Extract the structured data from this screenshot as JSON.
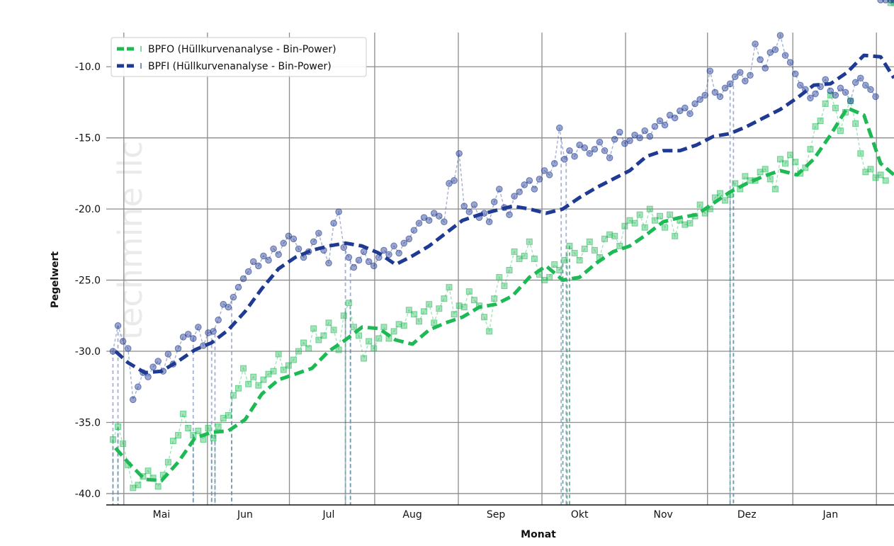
{
  "chart_data": {
    "type": "line",
    "title": "",
    "xlabel": "Monat",
    "ylabel": "Pegelwert",
    "watermark": "techmine llc",
    "ylim": [
      -40.8,
      -7.6
    ],
    "yticks": [
      -40.0,
      -35.0,
      -30.0,
      -25.0,
      -20.0,
      -15.0,
      -10.0
    ],
    "ytick_labels": [
      "-40.0",
      "-35.0",
      "-30.0",
      "-25.0",
      "-20.0",
      "-15.0",
      "-10.0"
    ],
    "xlim": [
      -0.66,
      8.76
    ],
    "categories": [
      "Mai",
      "Jun",
      "Jul",
      "Aug",
      "Sep",
      "Okt",
      "Nov",
      "Dez",
      "Jan"
    ],
    "month_boundaries": [
      -0.45,
      0.55,
      1.53,
      2.55,
      3.55,
      4.55,
      5.55,
      6.53,
      7.55,
      8.55
    ],
    "grid": true,
    "legend_position": "top-left",
    "series": [
      {
        "name": "BPFO (Hüllkurvenanalyse - Bin-Power)",
        "color": "#1db954",
        "marker": "square",
        "trend_x": [
          -0.55,
          -0.4,
          -0.2,
          0.0,
          0.2,
          0.4,
          0.6,
          0.8,
          1.0,
          1.2,
          1.4,
          1.6,
          1.8,
          2.0,
          2.2,
          2.4,
          2.6,
          2.8,
          3.0,
          3.2,
          3.4,
          3.6,
          3.8,
          4.0,
          4.2,
          4.4,
          4.6,
          4.8,
          5.0,
          5.2,
          5.4,
          5.6,
          5.8,
          6.0,
          6.2,
          6.4,
          6.6,
          6.8,
          7.0,
          7.2,
          7.4,
          7.6,
          7.8,
          8.0,
          8.2,
          8.4,
          8.6,
          8.76
        ],
        "trend_y": [
          -36.8,
          -37.8,
          -39.0,
          -39.1,
          -37.8,
          -36.1,
          -35.7,
          -35.6,
          -34.8,
          -33.0,
          -32.0,
          -31.6,
          -31.2,
          -30.0,
          -29.2,
          -28.3,
          -28.4,
          -29.2,
          -29.5,
          -28.5,
          -28.0,
          -27.6,
          -26.9,
          -26.7,
          -26.1,
          -24.8,
          -24.0,
          -25.0,
          -24.8,
          -23.8,
          -23.0,
          -22.6,
          -21.8,
          -20.9,
          -20.6,
          -20.4,
          -19.6,
          -18.8,
          -18.2,
          -17.7,
          -17.3,
          -17.6,
          -16.5,
          -14.8,
          -12.9,
          -13.4,
          -16.8,
          -17.6
        ],
        "raw_x": [
          -0.58,
          -0.52,
          -0.46,
          -0.4,
          -0.34,
          -0.28,
          -0.22,
          -0.16,
          -0.1,
          -0.04,
          0.02,
          0.08,
          0.14,
          0.2,
          0.26,
          0.32,
          0.38,
          0.44,
          0.5,
          0.56,
          0.62,
          0.68,
          0.74,
          0.8,
          0.86,
          0.92,
          0.98,
          1.04,
          1.1,
          1.16,
          1.22,
          1.28,
          1.34,
          1.4,
          1.46,
          1.52,
          1.58,
          1.64,
          1.7,
          1.76,
          1.82,
          1.88,
          1.94,
          2.0,
          2.06,
          2.12,
          2.18,
          2.24,
          2.3,
          2.36,
          2.42,
          2.48,
          2.54,
          2.6,
          2.66,
          2.72,
          2.78,
          2.84,
          2.9,
          2.96,
          3.02,
          3.08,
          3.14,
          3.2,
          3.26,
          3.32,
          3.38,
          3.44,
          3.5,
          3.56,
          3.62,
          3.68,
          3.74,
          3.8,
          3.86,
          3.92,
          3.98,
          4.04,
          4.1,
          4.16,
          4.22,
          4.28,
          4.34,
          4.4,
          4.46,
          4.52,
          4.58,
          4.64,
          4.7,
          4.76,
          4.82,
          4.88,
          4.94,
          5.0,
          5.06,
          5.12,
          5.18,
          5.24,
          5.3,
          5.36,
          5.42,
          5.48,
          5.54,
          5.6,
          5.66,
          5.72,
          5.78,
          5.84,
          5.9,
          5.96,
          6.02,
          6.08,
          6.14,
          6.2,
          6.26,
          6.32,
          6.38,
          6.44,
          6.5,
          6.56,
          6.62,
          6.68,
          6.74,
          6.8,
          6.86,
          6.92,
          6.98,
          7.04,
          7.1,
          7.16,
          7.22,
          7.28,
          7.34,
          7.4,
          7.46,
          7.52,
          7.58,
          7.64,
          7.7,
          7.76,
          7.82,
          7.88,
          7.94,
          8.0,
          8.06,
          8.12,
          8.18,
          8.24,
          8.3,
          8.36,
          8.42,
          8.48,
          8.54,
          8.6,
          8.66,
          8.72,
          8.76
        ],
        "raw_y": [
          -36.2,
          -35.3,
          -36.5,
          -38.0,
          -39.6,
          -39.4,
          -38.8,
          -38.4,
          -38.9,
          -39.5,
          -38.7,
          -37.8,
          -36.3,
          -35.9,
          -34.4,
          -35.4,
          -35.9,
          -35.6,
          -36.2,
          -35.4,
          -36.1,
          -35.3,
          -34.7,
          -34.5,
          -33.1,
          -32.6,
          -31.2,
          -32.3,
          -31.8,
          -32.4,
          -32.0,
          -31.6,
          -31.4,
          -30.2,
          -31.3,
          -31.0,
          -30.6,
          -30.0,
          -29.4,
          -29.8,
          -28.4,
          -29.2,
          -28.9,
          -28.0,
          -28.5,
          -29.9,
          -27.5,
          -26.6,
          -28.3,
          -28.9,
          -30.5,
          -29.3,
          -29.8,
          -29.1,
          -28.3,
          -29.1,
          -28.6,
          -28.1,
          -28.2,
          -27.1,
          -27.4,
          -27.9,
          -27.2,
          -26.7,
          -28.0,
          -27.0,
          -26.3,
          -25.5,
          -27.4,
          -26.8,
          -26.9,
          -25.8,
          -26.4,
          -26.8,
          -27.6,
          -28.6,
          -26.3,
          -24.8,
          -25.4,
          -24.3,
          -23.0,
          -23.5,
          -23.3,
          -22.3,
          -23.5,
          -24.6,
          -25.0,
          -24.8,
          -23.9,
          -24.3,
          -23.6,
          -22.6,
          -23.1,
          -23.6,
          -22.8,
          -22.3,
          -22.9,
          -23.4,
          -22.1,
          -21.8,
          -21.9,
          -22.6,
          -21.2,
          -20.8,
          -21.0,
          -20.4,
          -21.3,
          -20.0,
          -20.8,
          -20.5,
          -21.3,
          -20.4,
          -21.9,
          -20.8,
          -21.1,
          -21.0,
          -20.5,
          -19.7,
          -20.3,
          -20.0,
          -19.2,
          -18.9,
          -19.4,
          -19.0,
          -18.2,
          -18.6,
          -17.7,
          -18.0,
          -18.0,
          -17.4,
          -17.2,
          -17.9,
          -18.6,
          -16.5,
          -16.8,
          -16.2,
          -16.7,
          -17.5,
          -17.1,
          -15.8,
          -14.2,
          -13.8,
          -12.6,
          -12.0,
          -12.9,
          -14.5,
          -13.2,
          -12.4,
          -14.0,
          -16.1,
          -17.4,
          -17.2,
          -17.8,
          -17.6,
          -18.0
        ]
      },
      {
        "name": "BPFI (Hüllkurvenanalyse - Bin-Power)",
        "color": "#1f3a93",
        "marker": "circle",
        "trend_x": [
          -0.55,
          -0.4,
          -0.2,
          0.0,
          0.2,
          0.4,
          0.6,
          0.8,
          1.0,
          1.2,
          1.4,
          1.6,
          1.8,
          2.0,
          2.2,
          2.4,
          2.6,
          2.8,
          3.0,
          3.2,
          3.4,
          3.6,
          3.8,
          4.0,
          4.2,
          4.4,
          4.6,
          4.8,
          5.0,
          5.2,
          5.4,
          5.6,
          5.8,
          6.0,
          6.2,
          6.4,
          6.6,
          6.8,
          7.0,
          7.2,
          7.4,
          7.6,
          7.8,
          8.0,
          8.2,
          8.4,
          8.6,
          8.76
        ],
        "trend_y": [
          -30.0,
          -30.8,
          -31.5,
          -31.4,
          -30.7,
          -29.9,
          -29.4,
          -28.5,
          -27.2,
          -25.6,
          -24.2,
          -23.4,
          -22.9,
          -22.6,
          -22.4,
          -22.6,
          -23.1,
          -23.9,
          -23.3,
          -22.6,
          -21.7,
          -20.8,
          -20.4,
          -20.1,
          -19.8,
          -20.0,
          -20.3,
          -20.0,
          -19.2,
          -18.5,
          -17.9,
          -17.3,
          -16.3,
          -15.9,
          -15.9,
          -15.5,
          -14.9,
          -14.7,
          -14.2,
          -13.6,
          -13.0,
          -12.2,
          -11.3,
          -11.2,
          -10.4,
          -9.2,
          -9.3,
          -10.8
        ],
        "raw_x": [
          -0.58,
          -0.52,
          -0.46,
          -0.4,
          -0.34,
          -0.28,
          -0.22,
          -0.16,
          -0.1,
          -0.04,
          0.02,
          0.08,
          0.14,
          0.2,
          0.26,
          0.32,
          0.38,
          0.44,
          0.5,
          0.56,
          0.62,
          0.68,
          0.74,
          0.8,
          0.86,
          0.92,
          0.98,
          1.04,
          1.1,
          1.16,
          1.22,
          1.28,
          1.34,
          1.4,
          1.46,
          1.52,
          1.58,
          1.64,
          1.7,
          1.76,
          1.82,
          1.88,
          1.94,
          2.0,
          2.06,
          2.12,
          2.18,
          2.24,
          2.3,
          2.36,
          2.42,
          2.48,
          2.54,
          2.6,
          2.66,
          2.72,
          2.78,
          2.84,
          2.9,
          2.96,
          3.02,
          3.08,
          3.14,
          3.2,
          3.26,
          3.32,
          3.38,
          3.44,
          3.5,
          3.56,
          3.62,
          3.68,
          3.74,
          3.8,
          3.86,
          3.92,
          3.98,
          4.04,
          4.1,
          4.16,
          4.22,
          4.28,
          4.34,
          4.4,
          4.46,
          4.52,
          4.58,
          4.64,
          4.7,
          4.76,
          4.82,
          4.88,
          4.94,
          5.0,
          5.06,
          5.12,
          5.18,
          5.24,
          5.3,
          5.36,
          5.42,
          5.48,
          5.54,
          5.6,
          5.66,
          5.72,
          5.78,
          5.84,
          5.9,
          5.96,
          6.02,
          6.08,
          6.14,
          6.2,
          6.26,
          6.32,
          6.38,
          6.44,
          6.5,
          6.56,
          6.62,
          6.68,
          6.74,
          6.8,
          6.86,
          6.92,
          6.98,
          7.04,
          7.1,
          7.16,
          7.22,
          7.28,
          7.34,
          7.4,
          7.46,
          7.52,
          7.58,
          7.64,
          7.7,
          7.76,
          7.82,
          7.88,
          7.94,
          8.0,
          8.06,
          8.12,
          8.18,
          8.24,
          8.3,
          8.36,
          8.42,
          8.48,
          8.54,
          8.6,
          8.66,
          8.72,
          8.76
        ],
        "raw_y": [
          -30.0,
          -28.2,
          -29.3,
          -29.8,
          -33.4,
          -32.5,
          -31.5,
          -31.8,
          -31.1,
          -30.7,
          -31.4,
          -30.2,
          -30.9,
          -29.8,
          -29.0,
          -28.8,
          -29.1,
          -28.3,
          -29.6,
          -28.7,
          -28.6,
          -27.8,
          -26.7,
          -26.9,
          -26.2,
          -25.5,
          -24.9,
          -24.4,
          -23.7,
          -24.0,
          -23.3,
          -23.6,
          -22.8,
          -23.2,
          -22.4,
          -21.9,
          -22.1,
          -22.8,
          -23.4,
          -23.0,
          -22.3,
          -21.7,
          -22.9,
          -23.8,
          -21.0,
          -20.2,
          -22.7,
          -23.4,
          -24.1,
          -23.6,
          -23.0,
          -23.7,
          -24.0,
          -23.4,
          -22.9,
          -23.2,
          -22.6,
          -23.1,
          -22.4,
          -22.1,
          -21.5,
          -21.0,
          -20.6,
          -20.8,
          -20.3,
          -20.5,
          -20.9,
          -18.2,
          -18.0,
          -16.1,
          -19.8,
          -20.2,
          -19.7,
          -20.6,
          -20.3,
          -20.9,
          -19.5,
          -18.6,
          -19.9,
          -20.4,
          -19.1,
          -18.8,
          -18.3,
          -18.0,
          -18.6,
          -17.9,
          -17.3,
          -17.6,
          -16.8,
          -14.3,
          -16.5,
          -15.9,
          -16.3,
          -15.5,
          -15.7,
          -16.1,
          -15.8,
          -15.3,
          -15.9,
          -16.4,
          -15.1,
          -14.6,
          -15.4,
          -15.2,
          -14.8,
          -15.0,
          -14.5,
          -14.9,
          -14.2,
          -13.8,
          -14.1,
          -13.4,
          -13.6,
          -13.1,
          -12.9,
          -13.3,
          -12.6,
          -12.3,
          -12.0,
          -10.3,
          -11.8,
          -12.1,
          -11.5,
          -11.2,
          -10.7,
          -10.4,
          -11.0,
          -10.6,
          -8.4,
          -9.5,
          -10.1,
          -9.0,
          -8.8,
          -7.8,
          -9.2,
          -9.7,
          -10.5,
          -11.3,
          -11.6,
          -12.2,
          -11.9,
          -11.4,
          -10.9,
          -11.7,
          -12.0,
          -11.5,
          -11.8,
          -12.4,
          -11.1,
          -10.8,
          -11.3,
          -11.6,
          -12.1
        ]
      }
    ],
    "drop_events": {
      "bpfo_x": [
        -0.58,
        -0.52,
        0.38,
        0.6,
        0.64,
        0.84,
        2.2,
        2.26,
        4.8,
        4.85,
        4.88,
        6.8,
        6.84
      ],
      "bpfi_x": [
        -0.58,
        -0.52,
        0.38,
        0.6,
        0.64,
        0.84,
        2.2,
        2.26,
        4.78,
        4.84,
        6.8,
        6.84
      ],
      "floor": -40.8
    }
  }
}
